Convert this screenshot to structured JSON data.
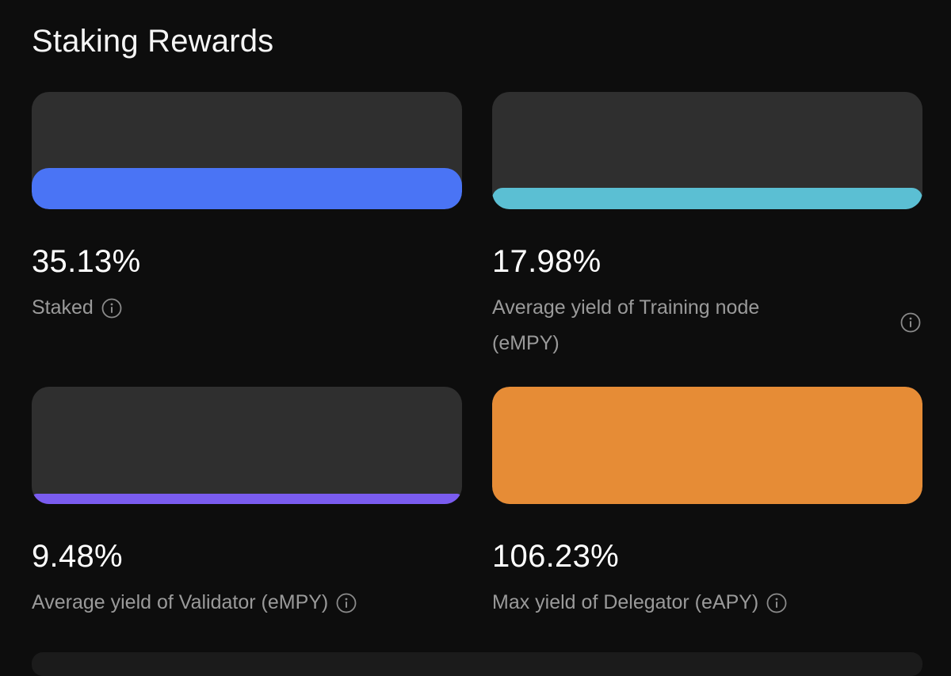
{
  "title": "Staking Rewards",
  "cards": [
    {
      "value": "35.13%",
      "label": "Staked",
      "bar_level_percent": 35,
      "color": "#4a74f5"
    },
    {
      "value": "17.98%",
      "label": "Average yield of Training node (eMPY)",
      "bar_level_percent": 18,
      "color": "#5bbfd3"
    },
    {
      "value": "9.48%",
      "label": "Average yield of Validator (eMPY)",
      "bar_level_percent": 9,
      "color": "#7a5cf0"
    },
    {
      "value": "106.23%",
      "label": "Max yield of Delegator (eAPY)",
      "bar_level_percent": 100,
      "color": "#e68c36"
    }
  ],
  "icons": {
    "info": "info-icon"
  }
}
